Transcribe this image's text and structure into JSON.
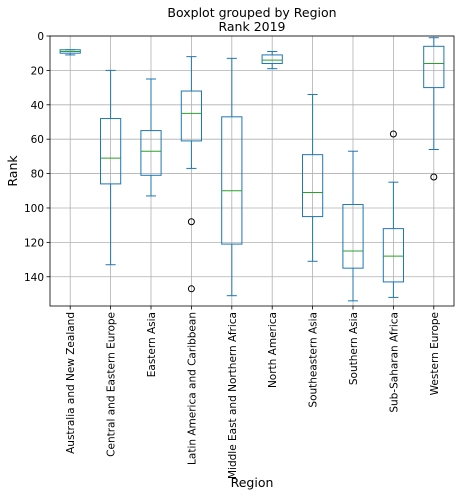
{
  "chart_data": {
    "type": "boxplot",
    "suptitle": "Boxplot grouped by Region",
    "title": "Rank 2019",
    "xlabel": "Region",
    "ylabel": "Rank",
    "y_inverted": true,
    "ylim": [
      157,
      0
    ],
    "yticks": [
      "0",
      "20",
      "40",
      "60",
      "80",
      "100",
      "120",
      "140"
    ],
    "grid": true,
    "colors": {
      "box": "#1f77b4",
      "median": "#2ca02c",
      "grid": "#b0b0b0"
    },
    "categories": [
      "Australia and New Zealand",
      "Central and Eastern Europe",
      "Eastern Asia",
      "Latin America and Caribbean",
      "Middle East and Northern Africa",
      "North America",
      "Southeastern Asia",
      "Southern Asia",
      "Sub-Saharan Africa",
      "Western Europe"
    ],
    "boxes": [
      {
        "whislo": 8,
        "q1": 8,
        "med": 9,
        "q3": 10,
        "whishi": 11,
        "fliers": []
      },
      {
        "whislo": 20,
        "q1": 48,
        "med": 71,
        "q3": 86,
        "whishi": 133,
        "fliers": []
      },
      {
        "whislo": 25,
        "q1": 55,
        "med": 67,
        "q3": 81,
        "whishi": 93,
        "fliers": []
      },
      {
        "whislo": 12,
        "q1": 32,
        "med": 45,
        "q3": 61,
        "whishi": 77,
        "fliers": [
          108,
          147
        ]
      },
      {
        "whislo": 13,
        "q1": 47,
        "med": 90,
        "q3": 121,
        "whishi": 151,
        "fliers": []
      },
      {
        "whislo": 9,
        "q1": 11,
        "med": 14,
        "q3": 16,
        "whishi": 19,
        "fliers": []
      },
      {
        "whislo": 34,
        "q1": 69,
        "med": 91,
        "q3": 105,
        "whishi": 131,
        "fliers": []
      },
      {
        "whislo": 67,
        "q1": 98,
        "med": 125,
        "q3": 135,
        "whishi": 154,
        "fliers": []
      },
      {
        "whislo": 85,
        "q1": 112,
        "med": 128,
        "q3": 143,
        "whishi": 152,
        "fliers": [
          57
        ]
      },
      {
        "whislo": 1,
        "q1": 6,
        "med": 16,
        "q3": 30,
        "whishi": 66,
        "fliers": [
          82
        ]
      }
    ]
  }
}
